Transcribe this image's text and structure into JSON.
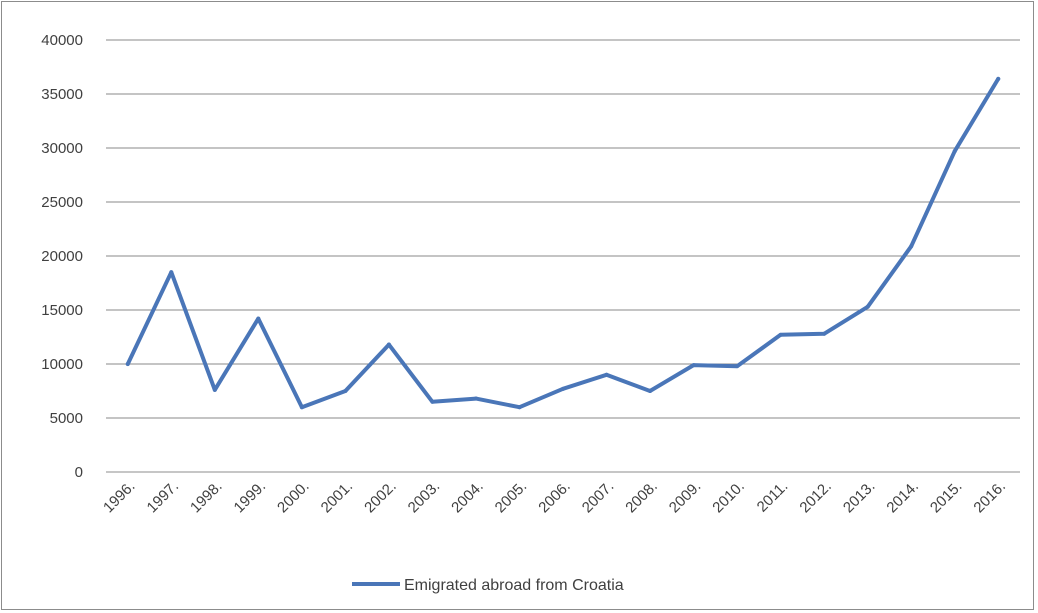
{
  "chart_data": {
    "type": "line",
    "title": "",
    "xlabel": "",
    "ylabel": "",
    "categories": [
      "1996.",
      "1997.",
      "1998.",
      "1999.",
      "2000.",
      "2001.",
      "2002.",
      "2003.",
      "2004.",
      "2005.",
      "2006.",
      "2007.",
      "2008.",
      "2009.",
      "2010.",
      "2011.",
      "2012.",
      "2013.",
      "2014.",
      "2015.",
      "2016."
    ],
    "series": [
      {
        "name": "Emigrated abroad from Croatia",
        "values": [
          10000,
          18500,
          7600,
          14200,
          6000,
          7500,
          11800,
          6500,
          6800,
          6000,
          7700,
          9000,
          7500,
          9900,
          9800,
          12700,
          12800,
          15300,
          20900,
          29700,
          36400
        ],
        "color": "#4a76b8"
      }
    ],
    "ylim": [
      0,
      40000
    ],
    "yticks": [
      0,
      5000,
      10000,
      15000,
      20000,
      25000,
      30000,
      35000,
      40000
    ],
    "grid": true,
    "legend": "bottom"
  }
}
